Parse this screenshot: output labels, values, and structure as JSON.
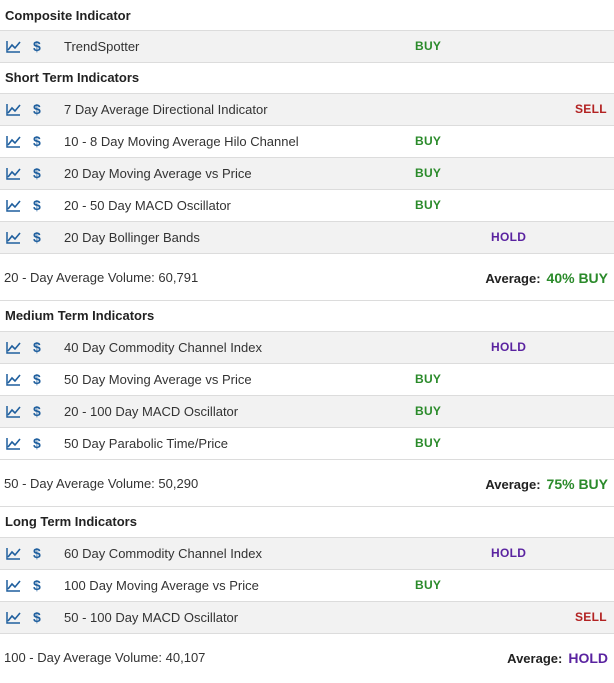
{
  "colors": {
    "buy": "#2a8a2a",
    "hold": "#5a23a0",
    "sell": "#b22222",
    "icon": "#1f5f9e"
  },
  "icons": {
    "chart": "line-chart-icon",
    "dollar": "dollar-icon"
  },
  "composite": {
    "title": "Composite Indicator",
    "rows": [
      {
        "name": "TrendSpotter",
        "signal": "BUY"
      }
    ]
  },
  "short_term": {
    "title": "Short Term Indicators",
    "rows": [
      {
        "name": "7 Day Average Directional Indicator",
        "signal": "SELL"
      },
      {
        "name": "10 - 8 Day Moving Average Hilo Channel",
        "signal": "BUY"
      },
      {
        "name": "20 Day Moving Average vs Price",
        "signal": "BUY"
      },
      {
        "name": "20 - 50 Day MACD Oscillator",
        "signal": "BUY"
      },
      {
        "name": "20 Day Bollinger Bands",
        "signal": "HOLD"
      }
    ],
    "volume": "20 - Day Average Volume: 60,791",
    "average_label": "Average:",
    "average_value": "40% BUY"
  },
  "medium_term": {
    "title": "Medium Term Indicators",
    "rows": [
      {
        "name": "40 Day Commodity Channel Index",
        "signal": "HOLD"
      },
      {
        "name": "50 Day Moving Average vs Price",
        "signal": "BUY"
      },
      {
        "name": "20 - 100 Day MACD Oscillator",
        "signal": "BUY"
      },
      {
        "name": "50 Day Parabolic Time/Price",
        "signal": "BUY"
      }
    ],
    "volume": "50 - Day Average Volume: 50,290",
    "average_label": "Average:",
    "average_value": "75% BUY"
  },
  "long_term": {
    "title": "Long Term Indicators",
    "rows": [
      {
        "name": "60 Day Commodity Channel Index",
        "signal": "HOLD"
      },
      {
        "name": "100 Day Moving Average vs Price",
        "signal": "BUY"
      },
      {
        "name": "50 - 100 Day MACD Oscillator",
        "signal": "SELL"
      }
    ],
    "volume": "100 - Day Average Volume: 40,107",
    "average_label": "Average:",
    "average_value": "HOLD"
  }
}
